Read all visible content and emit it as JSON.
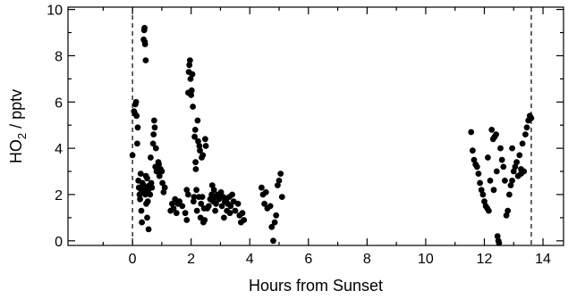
{
  "chart_data": {
    "type": "scatter",
    "title": "",
    "xlabel": "Hours from Sunset",
    "ylabel": {
      "pre": "HO",
      "sub": "2",
      "post": " / pptv"
    },
    "xlim": [
      -2.2,
      14.7
    ],
    "ylim": [
      -0.2,
      10.1
    ],
    "xticks": [
      0,
      2,
      4,
      6,
      8,
      10,
      12,
      14
    ],
    "yticks": [
      0,
      2,
      4,
      6,
      8,
      10
    ],
    "grid": false,
    "legend": "none",
    "marker_color": "#000000",
    "reference_lines": [
      {
        "x": 0,
        "style": "dashed"
      },
      {
        "x": 13.6,
        "style": "dashed"
      }
    ],
    "points": [
      [
        0.0,
        3.7
      ],
      [
        0.05,
        5.6
      ],
      [
        0.08,
        5.5
      ],
      [
        0.1,
        5.9
      ],
      [
        0.12,
        6.0
      ],
      [
        0.14,
        5.4
      ],
      [
        0.16,
        4.2
      ],
      [
        0.18,
        4.9
      ],
      [
        0.2,
        2.6
      ],
      [
        0.22,
        2.3
      ],
      [
        0.24,
        2.0
      ],
      [
        0.26,
        1.8
      ],
      [
        0.28,
        2.9
      ],
      [
        0.3,
        2.2
      ],
      [
        0.3,
        1.3
      ],
      [
        0.32,
        0.8
      ],
      [
        0.34,
        2.5
      ],
      [
        0.36,
        2.1
      ],
      [
        0.38,
        2.4
      ],
      [
        0.38,
        8.7
      ],
      [
        0.4,
        9.1
      ],
      [
        0.41,
        9.2
      ],
      [
        0.42,
        8.6
      ],
      [
        0.43,
        8.5
      ],
      [
        0.44,
        2.0
      ],
      [
        0.45,
        7.8
      ],
      [
        0.46,
        2.8
      ],
      [
        0.47,
        1.6
      ],
      [
        0.48,
        2.3
      ],
      [
        0.5,
        2.7
      ],
      [
        0.5,
        1.0
      ],
      [
        0.52,
        1.7
      ],
      [
        0.54,
        2.2
      ],
      [
        0.55,
        0.5
      ],
      [
        0.58,
        2.4
      ],
      [
        0.6,
        2.0
      ],
      [
        0.62,
        3.6
      ],
      [
        0.64,
        2.5
      ],
      [
        0.66,
        2.3
      ],
      [
        0.7,
        4.2
      ],
      [
        0.72,
        4.6
      ],
      [
        0.74,
        5.2
      ],
      [
        0.76,
        4.9
      ],
      [
        0.78,
        3.2
      ],
      [
        0.8,
        4.0
      ],
      [
        0.82,
        3.0
      ],
      [
        0.84,
        3.2
      ],
      [
        0.86,
        3.1
      ],
      [
        0.88,
        3.4
      ],
      [
        0.9,
        3.3
      ],
      [
        0.92,
        2.8
      ],
      [
        0.96,
        3.1
      ],
      [
        1.0,
        3.0
      ],
      [
        1.02,
        2.5
      ],
      [
        1.06,
        2.1
      ],
      [
        1.1,
        2.3
      ],
      [
        1.3,
        1.3
      ],
      [
        1.35,
        1.6
      ],
      [
        1.4,
        1.4
      ],
      [
        1.45,
        1.8
      ],
      [
        1.5,
        1.2
      ],
      [
        1.55,
        1.6
      ],
      [
        1.6,
        1.7
      ],
      [
        1.7,
        1.5
      ],
      [
        1.8,
        1.2
      ],
      [
        1.85,
        0.9
      ],
      [
        1.85,
        2.2
      ],
      [
        1.9,
        2.0
      ],
      [
        1.9,
        6.4
      ],
      [
        1.92,
        7.3
      ],
      [
        1.94,
        7.6
      ],
      [
        1.96,
        7.8
      ],
      [
        1.98,
        7.0
      ],
      [
        2.0,
        6.3
      ],
      [
        2.02,
        6.5
      ],
      [
        2.04,
        7.2
      ],
      [
        2.06,
        5.8
      ],
      [
        2.08,
        1.7
      ],
      [
        2.1,
        1.9
      ],
      [
        2.12,
        4.5
      ],
      [
        2.14,
        4.8
      ],
      [
        2.15,
        3.4
      ],
      [
        2.16,
        3.1
      ],
      [
        2.18,
        2.2
      ],
      [
        2.2,
        1.3
      ],
      [
        2.22,
        5.2
      ],
      [
        2.24,
        4.3
      ],
      [
        2.26,
        1.9
      ],
      [
        2.28,
        4.1
      ],
      [
        2.3,
        3.9
      ],
      [
        2.32,
        1.0
      ],
      [
        2.34,
        1.6
      ],
      [
        2.36,
        3.6
      ],
      [
        2.38,
        1.9
      ],
      [
        2.4,
        3.7
      ],
      [
        2.42,
        0.8
      ],
      [
        2.44,
        1.4
      ],
      [
        2.46,
        0.9
      ],
      [
        2.48,
        4.4
      ],
      [
        2.5,
        4.1
      ],
      [
        2.55,
        1.4
      ],
      [
        2.6,
        1.5
      ],
      [
        2.65,
        1.8
      ],
      [
        2.7,
        2.0
      ],
      [
        2.72,
        2.4
      ],
      [
        2.75,
        1.7
      ],
      [
        2.78,
        2.2
      ],
      [
        2.8,
        1.9
      ],
      [
        2.82,
        1.3
      ],
      [
        2.85,
        1.6
      ],
      [
        2.9,
        2.0
      ],
      [
        2.95,
        1.8
      ],
      [
        3.0,
        1.9
      ],
      [
        3.02,
        2.1
      ],
      [
        3.05,
        1.5
      ],
      [
        3.1,
        1.9
      ],
      [
        3.12,
        1.0
      ],
      [
        3.15,
        1.7
      ],
      [
        3.2,
        1.8
      ],
      [
        3.22,
        1.3
      ],
      [
        3.25,
        1.6
      ],
      [
        3.3,
        1.9
      ],
      [
        3.32,
        1.2
      ],
      [
        3.35,
        1.5
      ],
      [
        3.4,
        2.0
      ],
      [
        3.45,
        1.7
      ],
      [
        3.5,
        1.3
      ],
      [
        3.6,
        1.6
      ],
      [
        3.65,
        1.1
      ],
      [
        3.7,
        0.8
      ],
      [
        3.75,
        1.2
      ],
      [
        3.8,
        0.9
      ],
      [
        4.4,
        2.3
      ],
      [
        4.45,
        2.0
      ],
      [
        4.5,
        1.6
      ],
      [
        4.55,
        2.1
      ],
      [
        4.6,
        1.4
      ],
      [
        4.7,
        1.5
      ],
      [
        4.75,
        0.6
      ],
      [
        4.8,
        0.0
      ],
      [
        4.85,
        0.8
      ],
      [
        4.9,
        1.1
      ],
      [
        4.95,
        2.4
      ],
      [
        5.0,
        2.6
      ],
      [
        5.05,
        2.9
      ],
      [
        5.1,
        1.9
      ],
      [
        11.55,
        4.7
      ],
      [
        11.6,
        3.9
      ],
      [
        11.65,
        3.5
      ],
      [
        11.7,
        3.3
      ],
      [
        11.75,
        3.2
      ],
      [
        11.8,
        2.9
      ],
      [
        11.85,
        2.5
      ],
      [
        11.9,
        2.2
      ],
      [
        11.95,
        2.0
      ],
      [
        12.0,
        1.7
      ],
      [
        12.05,
        1.5
      ],
      [
        12.1,
        1.4
      ],
      [
        12.12,
        3.6
      ],
      [
        12.15,
        1.3
      ],
      [
        12.2,
        2.6
      ],
      [
        12.25,
        4.8
      ],
      [
        12.3,
        4.4
      ],
      [
        12.32,
        2.2
      ],
      [
        12.35,
        4.5
      ],
      [
        12.4,
        4.6
      ],
      [
        12.42,
        3.0
      ],
      [
        12.45,
        0.2
      ],
      [
        12.48,
        0.0
      ],
      [
        12.5,
        -0.1
      ],
      [
        12.55,
        4.0
      ],
      [
        12.6,
        3.5
      ],
      [
        12.65,
        3.2
      ],
      [
        12.7,
        2.6
      ],
      [
        12.75,
        1.1
      ],
      [
        12.8,
        1.3
      ],
      [
        12.85,
        2.0
      ],
      [
        12.9,
        2.4
      ],
      [
        12.95,
        2.6
      ],
      [
        13.0,
        3.0
      ],
      [
        13.05,
        3.2
      ],
      [
        13.1,
        3.4
      ],
      [
        13.15,
        2.8
      ],
      [
        13.2,
        3.7
      ],
      [
        13.25,
        3.1
      ],
      [
        13.3,
        4.2
      ],
      [
        13.35,
        3.0
      ],
      [
        13.4,
        4.6
      ],
      [
        13.45,
        4.9
      ],
      [
        13.5,
        5.2
      ],
      [
        13.55,
        5.4
      ],
      [
        13.6,
        5.3
      ],
      [
        12.95,
        4.0
      ],
      [
        13.25,
        2.9
      ]
    ]
  }
}
